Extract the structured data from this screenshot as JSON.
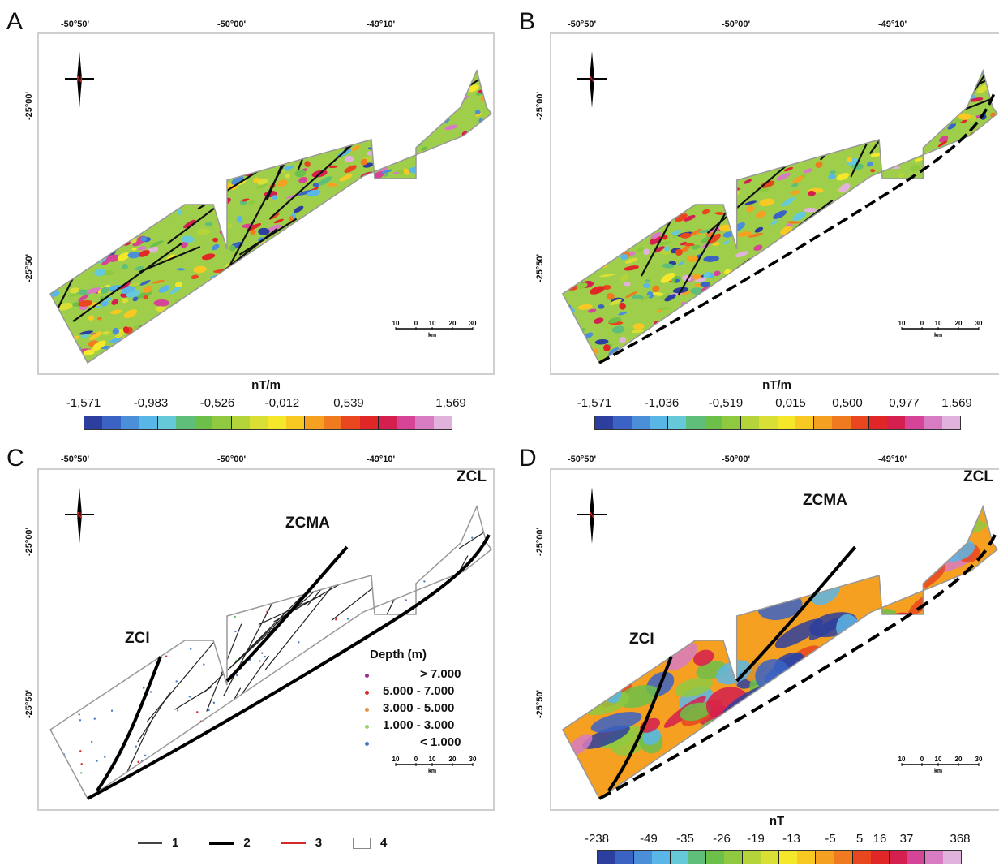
{
  "panels": [
    {
      "letter": "A"
    },
    {
      "letter": "B"
    },
    {
      "letter": "C"
    },
    {
      "letter": "D"
    }
  ],
  "longitudes": [
    "-50°50'",
    "-50°00'",
    "-49°10'"
  ],
  "latitudes": [
    "-25°00'",
    "-25°50'"
  ],
  "north_label": "N",
  "scale_bar": {
    "ticks": [
      "10",
      "0",
      "10",
      "20",
      "30"
    ],
    "unit": "km"
  },
  "colorbars": {
    "A": {
      "unit": "nT/m",
      "ticks": [
        "-1,571",
        "-0,983",
        "-0,526",
        "-0,012",
        "0,539",
        "1,569"
      ]
    },
    "B": {
      "unit": "nT/m",
      "ticks": [
        "-1,571",
        "-1,036",
        "-0,519",
        "0,015",
        "0,500",
        "0,977",
        "1,569"
      ]
    },
    "D": {
      "unit": "nT",
      "ticks": [
        "-238",
        "-49",
        "-35",
        "-26",
        "-19",
        "-13",
        "-5",
        "5",
        "16",
        "37",
        "368"
      ]
    }
  },
  "colormap": [
    "#2d3f9e",
    "#3a63c4",
    "#4a8fd8",
    "#5ab6e6",
    "#65c9d9",
    "#5fbf7a",
    "#6cc04a",
    "#8fc93f",
    "#b5d43a",
    "#d9df34",
    "#f5e82a",
    "#f9c923",
    "#f5a021",
    "#ef7a20",
    "#e8461f",
    "#e02626",
    "#d41f4f",
    "#d54496",
    "#d77cc2",
    "#e0b2dc"
  ],
  "zones": {
    "C": [
      "ZCL",
      "ZCMA",
      "ZCI"
    ],
    "D": [
      "ZCL",
      "ZCMA",
      "ZCI"
    ]
  },
  "depth_legend": {
    "title": "Depth (m)",
    "rows": [
      {
        "label": "> 7.000",
        "color": "#9b2d8e"
      },
      {
        "label": "5.000  -  7.000",
        "color": "#d62828"
      },
      {
        "label": "3.000  -  5.000",
        "color": "#e8903a"
      },
      {
        "label": "1.000  -  3.000",
        "color": "#9ccf6a"
      },
      {
        "label": "< 1.000",
        "color": "#4a78c8"
      }
    ]
  },
  "line_legend": [
    {
      "label": "1",
      "style": "thin"
    },
    {
      "label": "2",
      "style": "thick"
    },
    {
      "label": "3",
      "style": "red"
    },
    {
      "label": "4",
      "style": "box"
    }
  ]
}
